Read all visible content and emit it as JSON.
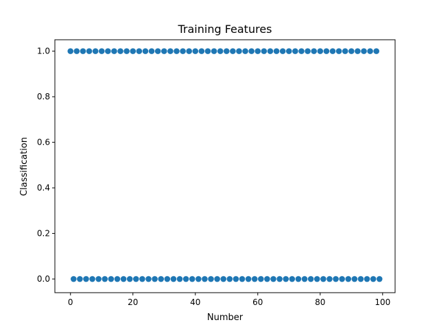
{
  "chart_data": {
    "type": "scatter",
    "title": "Training Features",
    "xlabel": "Number",
    "ylabel": "Classification",
    "xlim": [
      -5,
      104
    ],
    "ylim": [
      -0.06,
      1.05
    ],
    "grid": false,
    "colors": {
      "points": "#1f77b4",
      "axis": "#000000",
      "background": "#ffffff"
    },
    "x_ticks": [
      0,
      20,
      40,
      60,
      80,
      100
    ],
    "x_tick_labels": [
      "0",
      "20",
      "40",
      "60",
      "80",
      "100"
    ],
    "y_ticks": [
      0.0,
      0.2,
      0.4,
      0.6,
      0.8,
      1.0
    ],
    "y_tick_labels": [
      "0.0",
      "0.2",
      "0.4",
      "0.6",
      "0.8",
      "1.0"
    ],
    "series": [
      {
        "x": [
          0,
          1,
          2,
          3,
          4,
          5,
          6,
          7,
          8,
          9,
          10,
          11,
          12,
          13,
          14,
          15,
          16,
          17,
          18,
          19,
          20,
          21,
          22,
          23,
          24,
          25,
          26,
          27,
          28,
          29,
          30,
          31,
          32,
          33,
          34,
          35,
          36,
          37,
          38,
          39,
          40,
          41,
          42,
          43,
          44,
          45,
          46,
          47,
          48,
          49,
          50,
          51,
          52,
          53,
          54,
          55,
          56,
          57,
          58,
          59,
          60,
          61,
          62,
          63,
          64,
          65,
          66,
          67,
          68,
          69,
          70,
          71,
          72,
          73,
          74,
          75,
          76,
          77,
          78,
          79,
          80,
          81,
          82,
          83,
          84,
          85,
          86,
          87,
          88,
          89,
          90,
          91,
          92,
          93,
          94,
          95,
          96,
          97,
          98,
          99
        ],
        "y": [
          1,
          0,
          1,
          0,
          1,
          0,
          1,
          0,
          1,
          0,
          1,
          0,
          1,
          0,
          1,
          0,
          1,
          0,
          1,
          0,
          1,
          0,
          1,
          0,
          1,
          0,
          1,
          0,
          1,
          0,
          1,
          0,
          1,
          0,
          1,
          0,
          1,
          0,
          1,
          0,
          1,
          0,
          1,
          0,
          1,
          0,
          1,
          0,
          1,
          0,
          1,
          0,
          1,
          0,
          1,
          0,
          1,
          0,
          1,
          0,
          1,
          0,
          1,
          0,
          1,
          0,
          1,
          0,
          1,
          0,
          1,
          0,
          1,
          0,
          1,
          0,
          1,
          0,
          1,
          0,
          1,
          0,
          1,
          0,
          1,
          0,
          1,
          0,
          1,
          0,
          1,
          0,
          1,
          0,
          1,
          0,
          1,
          0,
          1,
          0
        ]
      }
    ]
  }
}
